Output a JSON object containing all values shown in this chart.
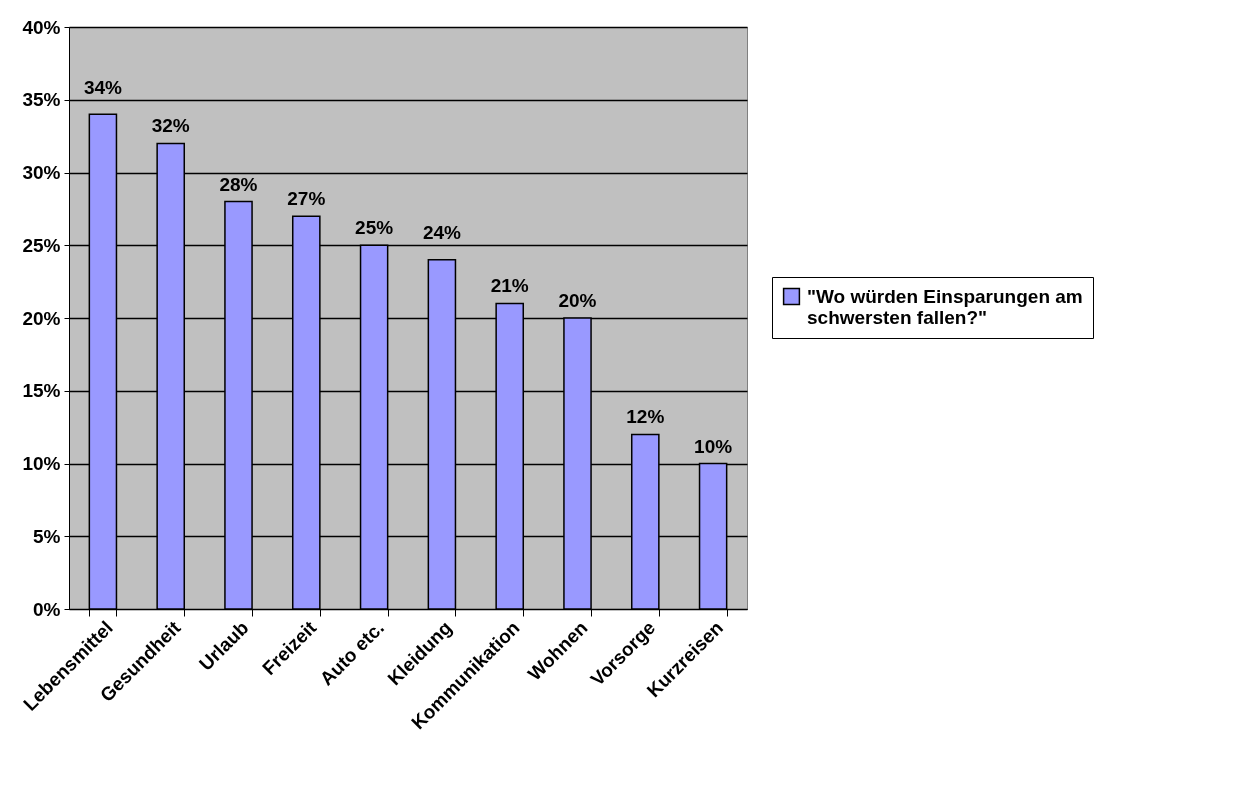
{
  "chart_data": {
    "type": "bar",
    "categories": [
      "Lebensmittel",
      "Gesundheit",
      "Urlaub",
      "Freizeit",
      "Auto etc.",
      "Kleidung",
      "Kommunikation",
      "Wohnen",
      "Vorsorge",
      "Kurzreisen"
    ],
    "series": [
      {
        "name": "\"Wo würden Einsparungen am schwersten fallen?\"",
        "color": "#9999ff",
        "values": [
          34,
          32,
          28,
          27,
          25,
          24,
          21,
          20,
          12,
          10
        ],
        "value_labels": [
          "34%",
          "32%",
          "28%",
          "27%",
          "25%",
          "24%",
          "21%",
          "20%",
          "12%",
          "10%"
        ]
      }
    ],
    "ylim": [
      0,
      40
    ],
    "yticks": [
      {
        "value": 0,
        "label": "0%"
      },
      {
        "value": 5,
        "label": "5%"
      },
      {
        "value": 10,
        "label": "10%"
      },
      {
        "value": 15,
        "label": "15%"
      },
      {
        "value": 20,
        "label": "20%"
      },
      {
        "value": 25,
        "label": "25%"
      },
      {
        "value": 30,
        "label": "30%"
      },
      {
        "value": 35,
        "label": "35%"
      },
      {
        "value": 40,
        "label": "40%"
      }
    ],
    "grid": "y",
    "legend": "right"
  }
}
